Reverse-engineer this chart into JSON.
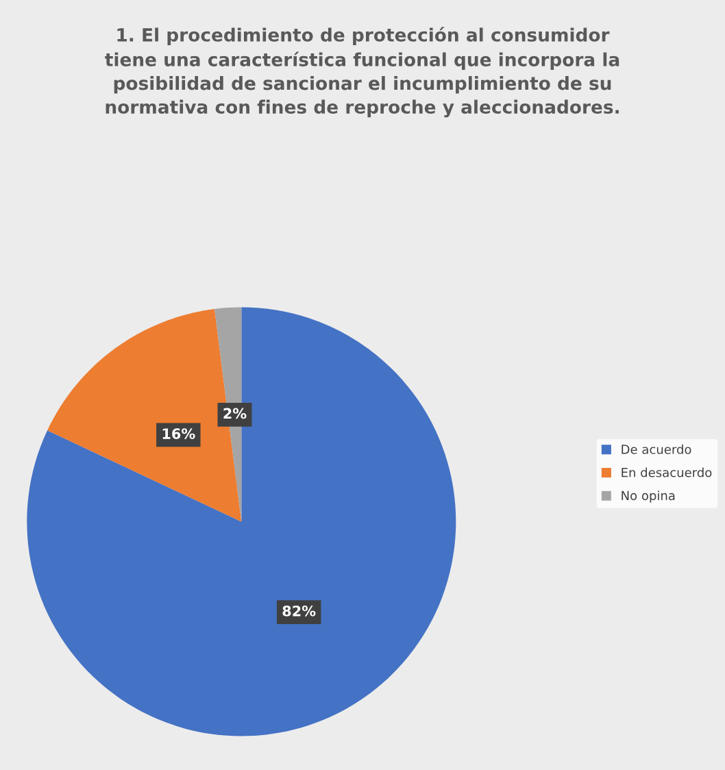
{
  "chart_data": {
    "type": "pie",
    "title": "1. El procedimiento de protección al consumidor\ntiene una característica funcional que incorpora la\nposibilidad de sancionar el incumplimiento de su\nnormativa con fines de reproche y aleccionadores.",
    "categories": [
      "De acuerdo",
      "En desacuerdo",
      "No opina"
    ],
    "values": [
      82,
      16,
      2
    ],
    "value_labels": [
      "82%",
      "16%",
      "2%"
    ],
    "colors": [
      "#4472c4",
      "#ed7d31",
      "#a5a5a5"
    ],
    "legend": "right"
  }
}
